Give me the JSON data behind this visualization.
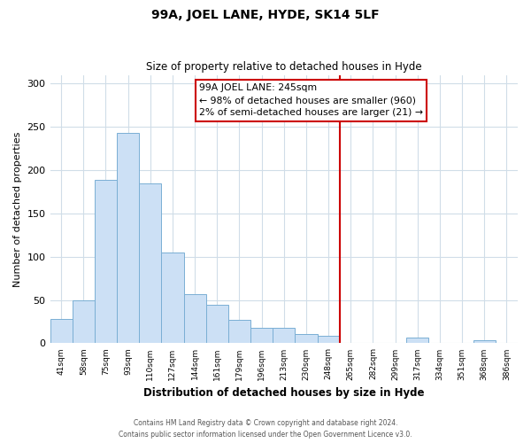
{
  "title": "99A, JOEL LANE, HYDE, SK14 5LF",
  "subtitle": "Size of property relative to detached houses in Hyde",
  "xlabel": "Distribution of detached houses by size in Hyde",
  "ylabel": "Number of detached properties",
  "bar_labels": [
    "41sqm",
    "58sqm",
    "75sqm",
    "93sqm",
    "110sqm",
    "127sqm",
    "144sqm",
    "161sqm",
    "179sqm",
    "196sqm",
    "213sqm",
    "230sqm",
    "248sqm",
    "265sqm",
    "282sqm",
    "299sqm",
    "317sqm",
    "334sqm",
    "351sqm",
    "368sqm",
    "386sqm"
  ],
  "bar_values": [
    28,
    50,
    189,
    243,
    185,
    105,
    57,
    44,
    27,
    18,
    18,
    11,
    9,
    0,
    0,
    0,
    7,
    0,
    0,
    3,
    0
  ],
  "bar_color": "#cce0f5",
  "bar_edge_color": "#7aafd4",
  "vline_x": 12,
  "vline_color": "#cc0000",
  "annotation_title": "99A JOEL LANE: 245sqm",
  "annotation_line1": "← 98% of detached houses are smaller (960)",
  "annotation_line2": "2% of semi-detached houses are larger (21) →",
  "footer_line1": "Contains HM Land Registry data © Crown copyright and database right 2024.",
  "footer_line2": "Contains public sector information licensed under the Open Government Licence v3.0.",
  "ylim": [
    0,
    310
  ],
  "background_color": "#ffffff",
  "grid_color": "#d0dde8"
}
